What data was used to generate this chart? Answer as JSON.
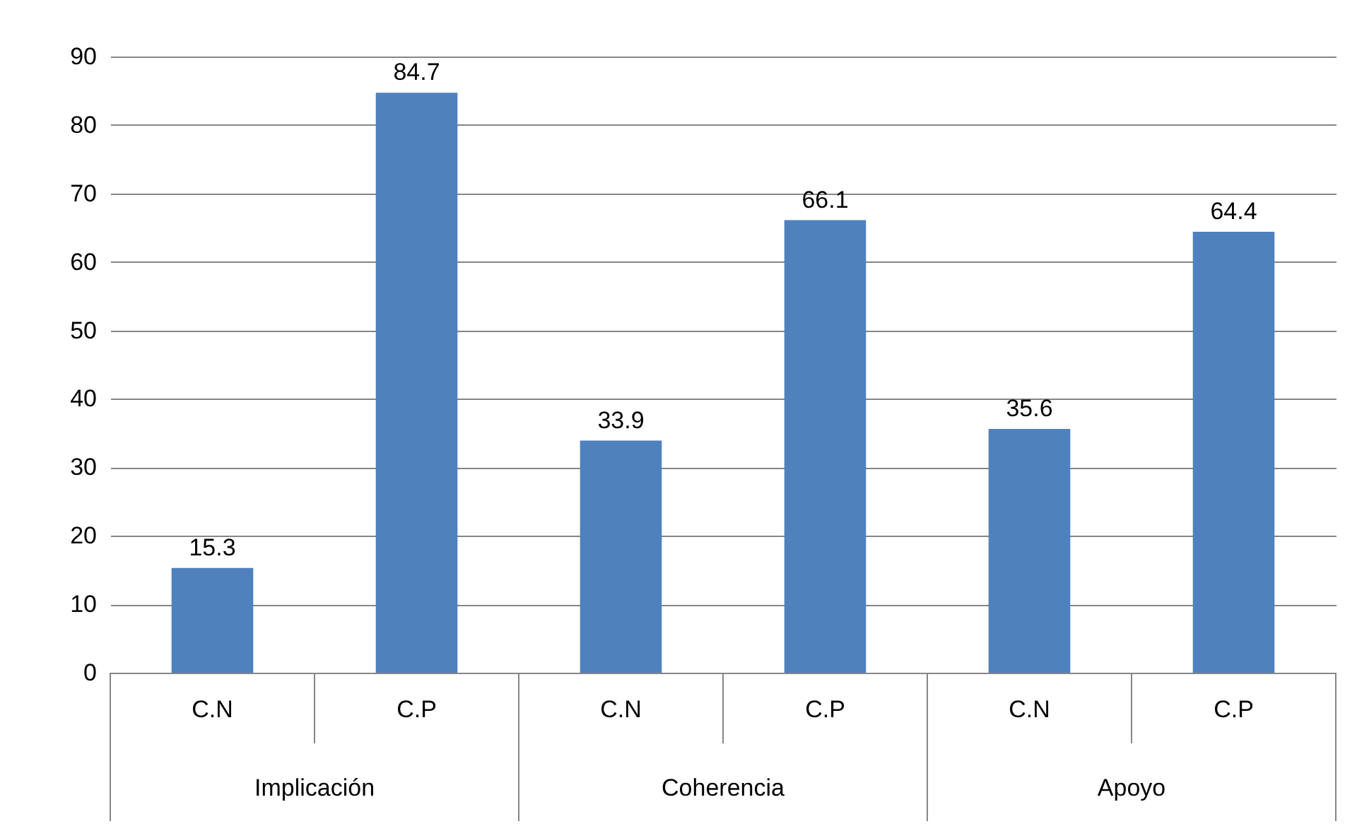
{
  "chart_data": {
    "type": "bar",
    "categories": [
      "C.N",
      "C.P",
      "C.N",
      "C.P",
      "C.N",
      "C.P"
    ],
    "values": [
      15.3,
      84.7,
      33.9,
      66.1,
      35.6,
      64.4
    ],
    "color": "#4f81bd",
    "ylim": [
      0,
      90
    ],
    "yticks": [
      0,
      10,
      20,
      30,
      40,
      50,
      60,
      70,
      80,
      90
    ],
    "grid": "y",
    "data_labels": true,
    "annotations": [
      "Implicación",
      "Coherencia",
      "Apoyo"
    ]
  }
}
